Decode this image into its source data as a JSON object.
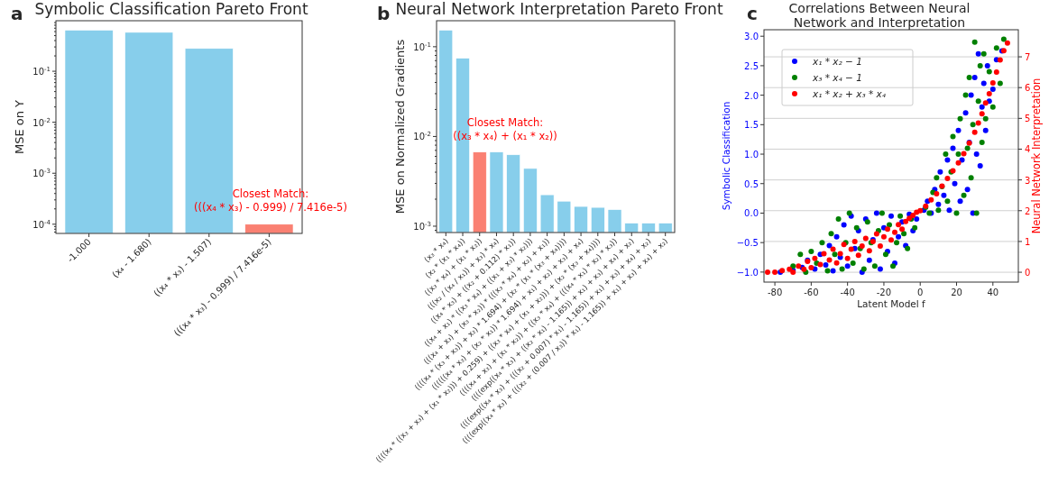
{
  "chart_data": [
    {
      "type": "bar",
      "title": "Symbolic Classification Pareto Front",
      "ylabel": "MSE on Y",
      "log": "y",
      "categories": [
        "-1.000",
        "(x₄ - 1.680)",
        "((x₄ * x₃) - 1.507)",
        "(((x₄ * x₃) - 0.999) / 7.416e-5)"
      ],
      "values": [
        0.64,
        0.58,
        0.28,
        0.0001
      ],
      "colors": [
        "#87ceeb",
        "#87ceeb",
        "#87ceeb",
        "#fa8072"
      ],
      "ylim": [
        6.6e-05,
        0.98
      ],
      "yticks": [
        {
          "value": 0.0001,
          "label": "10$^{-4}$"
        },
        {
          "value": 0.001,
          "label": "10$^{-3}$"
        },
        {
          "value": 0.01,
          "label": "10$^{-2}$"
        },
        {
          "value": 0.1,
          "label": "10$^{-1}$"
        }
      ],
      "annotations": [
        "a",
        "Closest Match:\n(((x₄ * x₃) - 0.999) / 7.416e-5)"
      ]
    },
    {
      "type": "bar",
      "title": "Neural Network Interpretation Pareto Front",
      "ylabel": "MSE on Normalized Gradients",
      "log": "y",
      "categories": [
        "(x₃ * x₄)",
        "(x₂ * (x₁ * x₄))",
        "((x₃ * x₄) + (x₁ * x₂))",
        "(((x₂ / (x₄ / x₁)) + x₃) * x₄)",
        "((x₄ * x₃) + ((x₂ + 0.112) * x₁))",
        "((x₄ + x₁) * ((x₃ * x₄) + ((x₁ + x₃) * x₂)))",
        "(((x₄ + x₃) + (x₃ * x₂)) * (((x₃ * x₄) + x₂) + x₁))",
        "((((x₄ * (x₃ + x₃)) + x₂) * 1.694) + (x₂ * (x₁ * (x₃ + x₄))))",
        "((((((x₄ * x₃) + (x₂ * x₁)) * 1.694) + x₁) + x₂) + x₃) + x₄)",
        "((((x₄ * ((x₃ + x₃) + (x₁ * x₂))) + 0.259) + ((x₃ * x₄) + (x₁ + x₂))) + (x₂ * (x₃ + x₄))))",
        "((((x₄ + x₃) + (x₁ * x₂)) + ((x₃ * x₄) + (((x₄ * x₁) * x₂) * x₃))",
        "((((exp((x₄ * x₃) + ((x₂ * x₁) - 1.165)) + x₁) + x₃) + x₄) + x₂)",
        "((((exp((x₄ * x₃) + (((x₂ + 0.007) * x₁) - 1.165)) + x₁) + x₃) + x₄) + x₂)",
        "((((exp((x₄ * x₃) + (((x₂ + (0.007 / x₃)) * x₁) - 1.165)) + x₁) + x₃) + x₄) + x₂)"
      ],
      "values": [
        0.153,
        0.0745,
        0.0067,
        0.0067,
        0.00625,
        0.0044,
        0.00224,
        0.0019,
        0.00166,
        0.00162,
        0.00153,
        0.00108,
        0.00108,
        0.00108
      ],
      "colors": [
        "#87ceeb",
        "#87ceeb",
        "#fa8072",
        "#87ceeb",
        "#87ceeb",
        "#87ceeb",
        "#87ceeb",
        "#87ceeb",
        "#87ceeb",
        "#87ceeb",
        "#87ceeb",
        "#87ceeb",
        "#87ceeb",
        "#87ceeb"
      ],
      "ylim": [
        0.00085,
        0.195
      ],
      "yticks": [
        {
          "value": 0.001,
          "label": "10$^{-3}$"
        },
        {
          "value": 0.01,
          "label": "10$^{-2}$"
        },
        {
          "value": 0.1,
          "label": "10$^{-1}$"
        }
      ],
      "annotations": [
        "b",
        "Closest Match:\n((x₃ * x₄) + (x₁ * x₂))"
      ]
    },
    {
      "type": "scatter",
      "title": "Correlations Between Neural\nNetwork and Interpretation",
      "xlabel": "Latent Model f",
      "ylabel": "Symbolic Classification",
      "y2label": "Neural Network Interpretation",
      "xlim": [
        -86,
        54
      ],
      "xticks": [
        -80,
        -60,
        -40,
        -20,
        0,
        20,
        40
      ],
      "ylim": [
        -1.17,
        3.11
      ],
      "yticks": [
        {
          "value": -1,
          "label": "−1.0"
        },
        {
          "value": -0.5,
          "label": "−0.5"
        },
        {
          "value": 0,
          "label": "0.0"
        },
        {
          "value": 0.5,
          "label": "0.5"
        },
        {
          "value": 1,
          "label": "1.0"
        },
        {
          "value": 1.5,
          "label": "1.5"
        },
        {
          "value": 2,
          "label": "2.0"
        },
        {
          "value": 2.5,
          "label": "2.5"
        },
        {
          "value": 3,
          "label": "3.0"
        }
      ],
      "y2lim": [
        -0.32,
        7.88
      ],
      "y2ticks": [
        0,
        1,
        2,
        3,
        4,
        5,
        6,
        7
      ],
      "grid": "y2",
      "legend": "top left",
      "marker": "circle",
      "annotations": [
        "c"
      ],
      "series": [
        {
          "name": "x₁ * x₂ − 1",
          "color": "#0000ff",
          "x": [
            -77,
            -70,
            -65,
            -62,
            -58,
            -55,
            -52,
            -50,
            -48,
            -46,
            -44,
            -42,
            -40,
            -38,
            -36,
            -34,
            -32,
            -30,
            -28,
            -26,
            -24,
            -22,
            -20,
            -18,
            -16,
            -14,
            -12,
            -10,
            -8,
            -6,
            -4,
            -2,
            2,
            4,
            6,
            8,
            10,
            11,
            13,
            15,
            16,
            18,
            19,
            21,
            22,
            23,
            25,
            26,
            27,
            28,
            29,
            30,
            31,
            32,
            33,
            34,
            35,
            36,
            37,
            38,
            40,
            42,
            45
          ],
          "values": [
            -1.0,
            -0.97,
            -0.92,
            -0.8,
            -0.95,
            -0.7,
            -0.88,
            -0.55,
            -0.98,
            -0.4,
            -0.75,
            -0.2,
            -0.9,
            -0.05,
            -0.6,
            -0.3,
            -1.0,
            -0.1,
            -0.8,
            -0.45,
            0.0,
            -0.95,
            -0.25,
            -0.65,
            -0.05,
            -0.85,
            -0.4,
            -0.15,
            -0.55,
            -0.02,
            -0.3,
            -0.1,
            0.05,
            0.2,
            0.0,
            0.4,
            0.15,
            0.7,
            0.3,
            0.9,
            0.05,
            1.1,
            0.5,
            1.4,
            0.2,
            0.9,
            1.7,
            0.4,
            1.2,
            2.0,
            0.0,
            2.3,
            1.0,
            2.7,
            0.8,
            1.8,
            2.2,
            1.4,
            2.5,
            1.9,
            2.1,
            2.6,
            2.75
          ]
        },
        {
          "name": "x₃ * x₄ − 1",
          "color": "#008000",
          "x": [
            -70,
            -66,
            -63,
            -60,
            -57,
            -54,
            -51,
            -49,
            -47,
            -45,
            -43,
            -41,
            -39,
            -37,
            -35,
            -33,
            -31,
            -29,
            -27,
            -25,
            -23,
            -21,
            -19,
            -17,
            -15,
            -13,
            -11,
            -9,
            -7,
            -5,
            -3,
            3,
            5,
            7,
            9,
            10,
            12,
            14,
            15,
            17,
            18,
            20,
            21,
            22,
            24,
            25,
            26,
            27,
            28,
            29,
            30,
            31,
            32,
            33,
            34,
            35,
            36,
            38,
            40,
            42,
            44,
            46
          ],
          "values": [
            -0.9,
            -0.7,
            -1.0,
            -0.65,
            -0.85,
            -0.5,
            -0.98,
            -0.35,
            -0.7,
            -0.1,
            -0.95,
            -0.5,
            0.0,
            -0.85,
            -0.25,
            -0.6,
            -0.95,
            -0.15,
            -0.5,
            -0.9,
            -0.3,
            0.0,
            -0.7,
            -0.2,
            -0.9,
            -0.5,
            -0.05,
            -0.35,
            -0.6,
            -0.1,
            -0.25,
            0.1,
            0.0,
            0.35,
            0.6,
            0.05,
            0.45,
            1.0,
            0.2,
            0.7,
            1.3,
            0.0,
            1.0,
            1.6,
            0.3,
            2.0,
            1.1,
            2.3,
            0.6,
            1.5,
            2.9,
            0.0,
            1.9,
            2.5,
            1.2,
            2.7,
            1.6,
            2.4,
            1.8,
            2.8,
            2.2,
            2.95
          ]
        },
        {
          "name": "x₁ * x₂ + x₃ * x₄",
          "color": "#ff0000",
          "axis": "y2",
          "x": [
            -84,
            -80,
            -76,
            -72,
            -70,
            -67,
            -64,
            -62,
            -60,
            -58,
            -55,
            -53,
            -50,
            -48,
            -46,
            -44,
            -42,
            -40,
            -38,
            -36,
            -34,
            -32,
            -30,
            -28,
            -26,
            -24,
            -22,
            -20,
            -18,
            -16,
            -14,
            -12,
            -10,
            -8,
            -6,
            -4,
            -2,
            0,
            3,
            6,
            9,
            12,
            15,
            18,
            21,
            24,
            27,
            30,
            32,
            34,
            36,
            38,
            40,
            42,
            44,
            46,
            48
          ],
          "values": [
            0.0,
            0.0,
            0.05,
            0.1,
            0.0,
            0.2,
            0.1,
            0.35,
            0.15,
            0.45,
            0.25,
            0.6,
            0.4,
            0.75,
            0.3,
            0.6,
            0.9,
            0.45,
            0.75,
            1.0,
            0.55,
            0.85,
            1.1,
            0.7,
            1.0,
            1.25,
            0.85,
            1.15,
            1.4,
            1.05,
            1.3,
            1.55,
            1.4,
            1.65,
            1.75,
            1.85,
            1.95,
            2.0,
            2.15,
            2.35,
            2.55,
            2.8,
            3.05,
            3.3,
            3.55,
            3.85,
            4.2,
            4.55,
            4.85,
            5.15,
            5.5,
            5.8,
            6.15,
            6.5,
            6.9,
            7.2,
            7.45
          ]
        }
      ]
    }
  ]
}
